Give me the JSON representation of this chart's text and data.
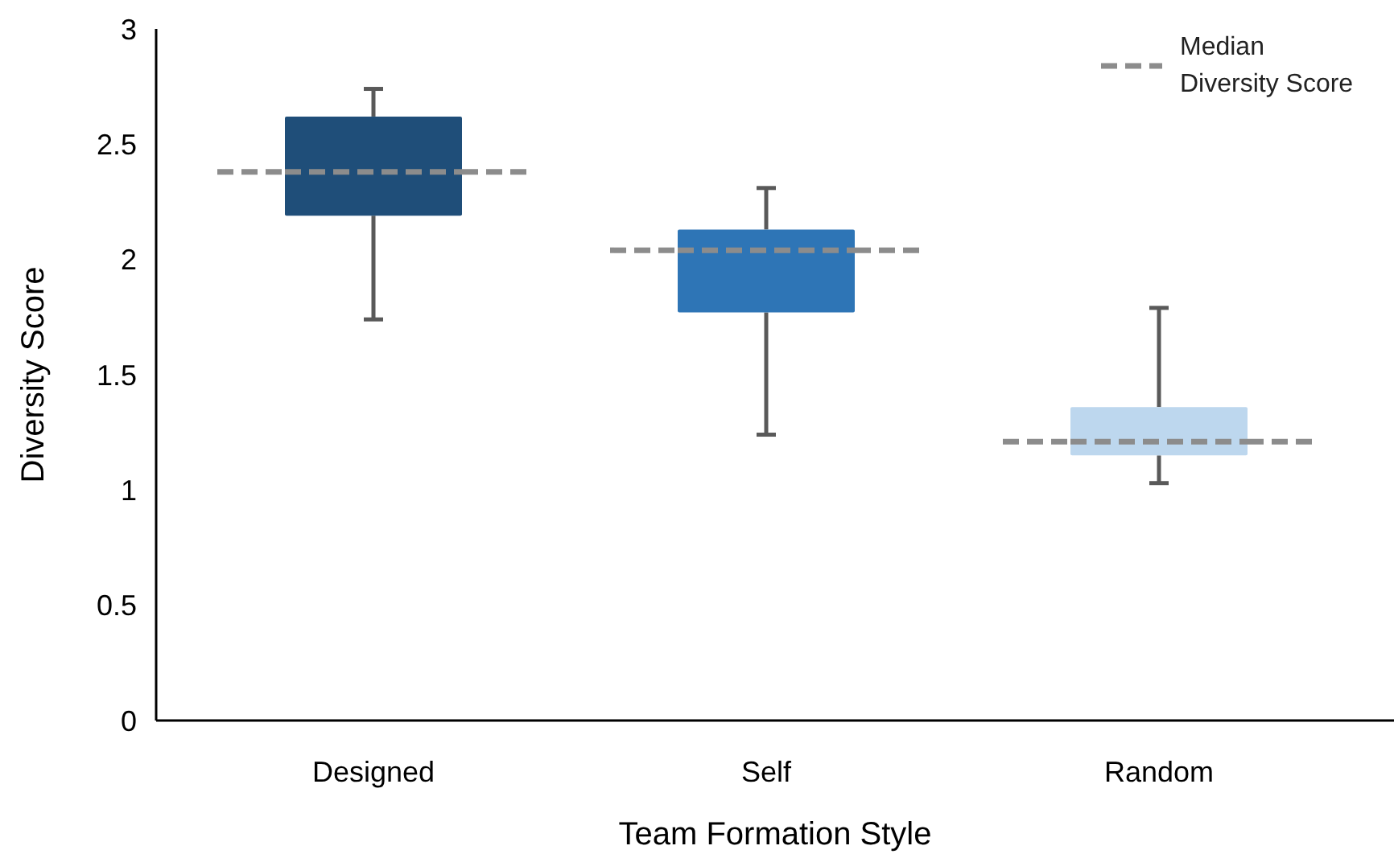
{
  "chart_data": {
    "type": "box",
    "xlabel": "Team Formation Style",
    "ylabel": "Diversity Score",
    "categories": [
      "Designed",
      "Self",
      "Random"
    ],
    "ylim": [
      0,
      3
    ],
    "yticks": [
      0,
      0.5,
      1,
      1.5,
      2,
      2.5,
      3
    ],
    "legend": "top right",
    "line_style": "dashed",
    "series": [
      {
        "name": "Median Diversity Score",
        "color": "#8c8c8c",
        "colors": [
          "#1f4e79",
          "#2e75b6",
          "#bdd7ee"
        ],
        "boxes": [
          {
            "low": 1.74,
            "q1": 2.19,
            "median": 2.38,
            "q3": 2.62,
            "high": 2.74
          },
          {
            "low": 1.24,
            "q1": 1.77,
            "median": 2.04,
            "q3": 2.13,
            "high": 2.31
          },
          {
            "low": 1.03,
            "q1": 1.15,
            "median": 1.21,
            "q3": 1.36,
            "high": 1.79
          }
        ]
      }
    ]
  }
}
